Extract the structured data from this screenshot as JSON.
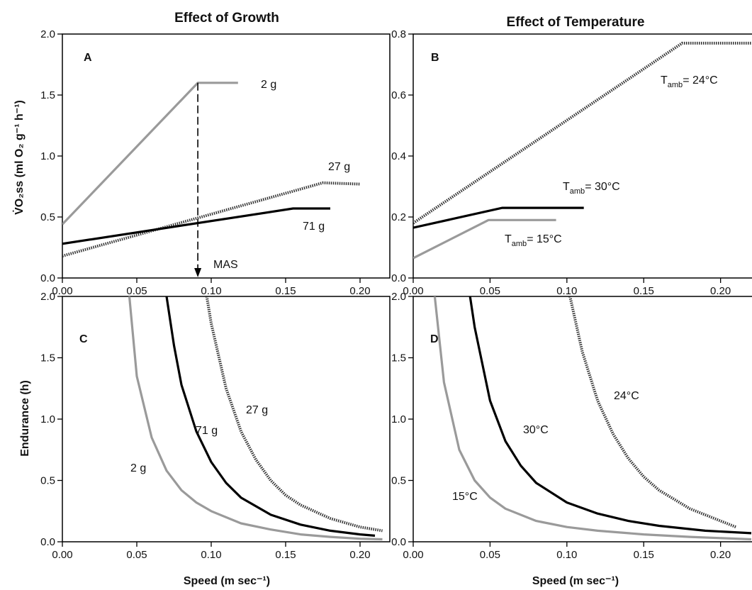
{
  "titles": {
    "left": "Effect of Growth",
    "right": "Effect of Temperature"
  },
  "axis_labels": {
    "y_top_left": "V̇O₂ss (ml O₂ g⁻¹ h⁻¹)",
    "y_bottom_left": "Endurance (h)",
    "x_bottom": "Speed (m sec⁻¹)"
  },
  "colors": {
    "gray_series": "#9a9a9a",
    "black_series": "#000000",
    "dotted_series": "#333333"
  },
  "chart_data": [
    {
      "panel": "A",
      "type": "line",
      "title": "Effect of Growth",
      "xlabel": "",
      "ylabel": "V̇O₂ss (ml O₂ g⁻¹ h⁻¹)",
      "xlim": [
        0,
        0.22
      ],
      "ylim": [
        0,
        2.0
      ],
      "xticks": [
        "0.00",
        "0.05",
        "0.10",
        "0.15",
        "0.20"
      ],
      "yticks": [
        "0.0",
        "0.5",
        "1.0",
        "1.5",
        "2.0"
      ],
      "series": [
        {
          "name": "2 g",
          "style": "gray",
          "x": [
            0.0,
            0.091,
            0.118
          ],
          "y": [
            0.44,
            1.6,
            1.6
          ]
        },
        {
          "name": "27 g",
          "style": "dotted",
          "x": [
            0.0,
            0.175,
            0.2
          ],
          "y": [
            0.18,
            0.78,
            0.77
          ]
        },
        {
          "name": "71 g",
          "style": "black",
          "x": [
            0.0,
            0.155,
            0.18
          ],
          "y": [
            0.28,
            0.57,
            0.57
          ]
        }
      ],
      "annotations": [
        {
          "text": "MAS",
          "x": 0.091,
          "y_from": 1.6,
          "y_to": 0.0
        }
      ]
    },
    {
      "panel": "B",
      "type": "line",
      "title": "Effect of Temperature",
      "xlabel": "",
      "ylabel": "",
      "xlim": [
        0,
        0.22
      ],
      "ylim": [
        0,
        0.8
      ],
      "xticks": [
        "0.00",
        "0.05",
        "0.10",
        "0.15",
        "0.20"
      ],
      "yticks": [
        "0.0",
        "0.2",
        "0.4",
        "0.6",
        "0.8"
      ],
      "series": [
        {
          "name": "T amb = 24°C",
          "style": "dotted",
          "x": [
            0.0,
            0.175,
            0.22
          ],
          "y": [
            0.18,
            0.77,
            0.77
          ]
        },
        {
          "name": "T amb = 30°C",
          "style": "black",
          "x": [
            0.0,
            0.058,
            0.111
          ],
          "y": [
            0.165,
            0.23,
            0.23
          ]
        },
        {
          "name": "T amb = 15°C",
          "style": "gray",
          "x": [
            0.0,
            0.049,
            0.093
          ],
          "y": [
            0.065,
            0.19,
            0.19
          ]
        }
      ],
      "label_parts": {
        "t": "T",
        "sub": "amb",
        "eq24": "= 24°C",
        "eq30": "= 30°C",
        "eq15": "= 15°C"
      }
    },
    {
      "panel": "C",
      "type": "line",
      "xlabel": "Speed (m sec⁻¹)",
      "ylabel": "Endurance (h)",
      "xlim": [
        0,
        0.22
      ],
      "ylim": [
        0,
        2.0
      ],
      "xticks": [
        "0.00",
        "0.05",
        "0.10",
        "0.15",
        "0.20"
      ],
      "yticks": [
        "0.0",
        "0.5",
        "1.0",
        "1.5",
        "2.0"
      ],
      "series": [
        {
          "name": "2 g",
          "style": "gray",
          "x": [
            0.045,
            0.05,
            0.06,
            0.07,
            0.08,
            0.09,
            0.1,
            0.12,
            0.14,
            0.16,
            0.18,
            0.2,
            0.215
          ],
          "y": [
            2.0,
            1.35,
            0.85,
            0.58,
            0.42,
            0.32,
            0.25,
            0.15,
            0.1,
            0.06,
            0.04,
            0.025,
            0.02
          ]
        },
        {
          "name": "71 g",
          "style": "black",
          "x": [
            0.07,
            0.075,
            0.08,
            0.09,
            0.1,
            0.11,
            0.12,
            0.14,
            0.16,
            0.18,
            0.2,
            0.21
          ],
          "y": [
            2.0,
            1.6,
            1.28,
            0.9,
            0.65,
            0.48,
            0.36,
            0.22,
            0.14,
            0.09,
            0.06,
            0.05
          ]
        },
        {
          "name": "27 g",
          "style": "dotted",
          "x": [
            0.097,
            0.1,
            0.11,
            0.12,
            0.13,
            0.14,
            0.15,
            0.16,
            0.18,
            0.2,
            0.215
          ],
          "y": [
            2.0,
            1.78,
            1.25,
            0.9,
            0.67,
            0.5,
            0.38,
            0.3,
            0.19,
            0.12,
            0.09
          ]
        }
      ]
    },
    {
      "panel": "D",
      "type": "line",
      "xlabel": "Speed (m sec⁻¹)",
      "ylabel": "",
      "xlim": [
        0,
        0.22
      ],
      "ylim": [
        0,
        2.0
      ],
      "xticks": [
        "0.00",
        "0.05",
        "0.10",
        "0.15",
        "0.20"
      ],
      "yticks": [
        "0.0",
        "0.5",
        "1.0",
        "1.5",
        "2.0"
      ],
      "series": [
        {
          "name": "15°C",
          "style": "gray",
          "x": [
            0.014,
            0.02,
            0.03,
            0.04,
            0.05,
            0.06,
            0.08,
            0.1,
            0.12,
            0.15,
            0.18,
            0.22
          ],
          "y": [
            2.0,
            1.3,
            0.75,
            0.5,
            0.36,
            0.27,
            0.17,
            0.12,
            0.09,
            0.06,
            0.04,
            0.02
          ]
        },
        {
          "name": "30°C",
          "style": "black",
          "x": [
            0.037,
            0.04,
            0.05,
            0.06,
            0.07,
            0.08,
            0.1,
            0.12,
            0.14,
            0.16,
            0.19,
            0.22
          ],
          "y": [
            2.0,
            1.75,
            1.15,
            0.82,
            0.62,
            0.48,
            0.32,
            0.23,
            0.17,
            0.13,
            0.09,
            0.07
          ]
        },
        {
          "name": "24°C",
          "style": "dotted",
          "x": [
            0.102,
            0.11,
            0.12,
            0.13,
            0.14,
            0.15,
            0.16,
            0.18,
            0.2,
            0.21
          ],
          "y": [
            2.0,
            1.55,
            1.15,
            0.88,
            0.68,
            0.53,
            0.42,
            0.27,
            0.17,
            0.12
          ]
        }
      ]
    }
  ]
}
